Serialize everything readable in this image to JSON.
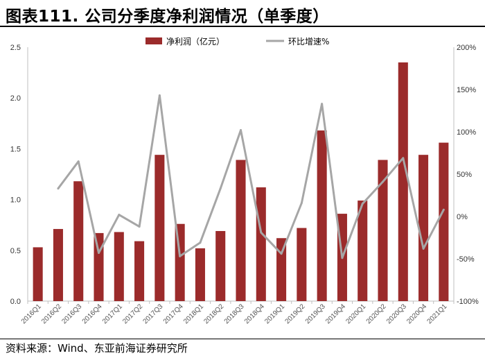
{
  "title": "图表111. 公司分季度净利润情况（单季度）",
  "source": "资料来源：Wind、东亚前海证券研究所",
  "chart_data": {
    "type": "bar+line",
    "categories": [
      "2016Q1",
      "2016Q2",
      "2016Q3",
      "2016Q4",
      "2017Q1",
      "2017Q2",
      "2017Q3",
      "2017Q4",
      "2018Q1",
      "2018Q2",
      "2018Q3",
      "2018Q4",
      "2019Q1",
      "2019Q2",
      "2019Q3",
      "2019Q4",
      "2020Q1",
      "2020Q2",
      "2020Q3",
      "2020Q4",
      "2021Q1"
    ],
    "series": [
      {
        "name": "净利润（亿元）",
        "type": "bar",
        "axis": "left",
        "color": "#9B2B2B",
        "values": [
          0.53,
          0.71,
          1.18,
          0.67,
          0.68,
          0.59,
          1.44,
          0.76,
          0.52,
          0.69,
          1.39,
          1.12,
          0.62,
          0.72,
          1.68,
          0.86,
          0.99,
          1.39,
          2.35,
          1.44,
          1.56
        ]
      },
      {
        "name": "环比增速%",
        "type": "line",
        "axis": "right",
        "color": "#A6A6A6",
        "values": [
          null,
          33,
          65,
          -43,
          2,
          -12,
          143,
          -47,
          -31,
          33,
          102,
          -19,
          -44,
          16,
          133,
          -49,
          15,
          41,
          69,
          -38,
          8
        ]
      }
    ],
    "y_left": {
      "min": 0,
      "max": 2.5,
      "ticks": [
        "0.0",
        "0.5",
        "1.0",
        "1.5",
        "2.0",
        "2.5"
      ]
    },
    "y_right": {
      "min": -100,
      "max": 200,
      "ticks": [
        "-100%",
        "-50%",
        "0%",
        "50%",
        "100%",
        "150%",
        "200%"
      ]
    },
    "legend_position": "top-center",
    "grid": false
  }
}
